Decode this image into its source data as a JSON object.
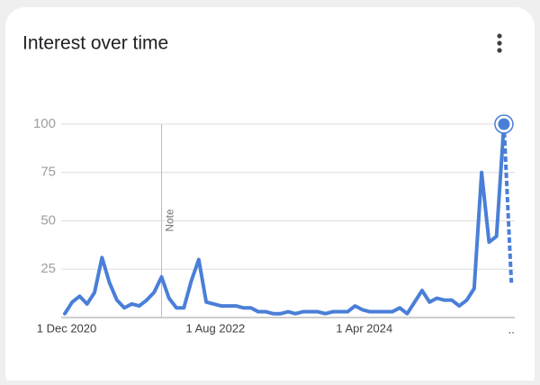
{
  "chart_data": {
    "type": "line",
    "title": "Interest over time",
    "categories": [
      "1 Dec 2020",
      null,
      null,
      null,
      null,
      null,
      null,
      null,
      null,
      null,
      null,
      null,
      null,
      null,
      null,
      null,
      null,
      null,
      null,
      null,
      "1 Aug 2022",
      null,
      null,
      null,
      null,
      null,
      null,
      null,
      null,
      null,
      null,
      null,
      null,
      null,
      null,
      null,
      null,
      null,
      null,
      null,
      "1 Apr 2024",
      null,
      null,
      null,
      null,
      null,
      null,
      null,
      null,
      null,
      null,
      null,
      null,
      null,
      null,
      null,
      null,
      null,
      null,
      null,
      ".."
    ],
    "values": [
      2,
      8,
      11,
      7,
      13,
      31,
      18,
      9,
      5,
      7,
      6,
      9,
      13,
      21,
      10,
      5,
      5,
      19,
      30,
      8,
      7,
      6,
      6,
      6,
      5,
      5,
      3,
      3,
      2,
      2,
      3,
      2,
      3,
      3,
      3,
      2,
      3,
      3,
      3,
      6,
      4,
      3,
      3,
      3,
      3,
      5,
      2,
      8,
      14,
      8,
      10,
      9,
      9,
      6,
      9,
      15,
      75,
      39,
      42,
      100,
      18
    ],
    "partial_last": true,
    "color": "#4a7fd8",
    "ylim": [
      0,
      100
    ],
    "yticks": [
      25,
      50,
      75,
      100
    ],
    "grid": true,
    "annotations": [
      {
        "text": "Note",
        "index": 13
      }
    ]
  }
}
